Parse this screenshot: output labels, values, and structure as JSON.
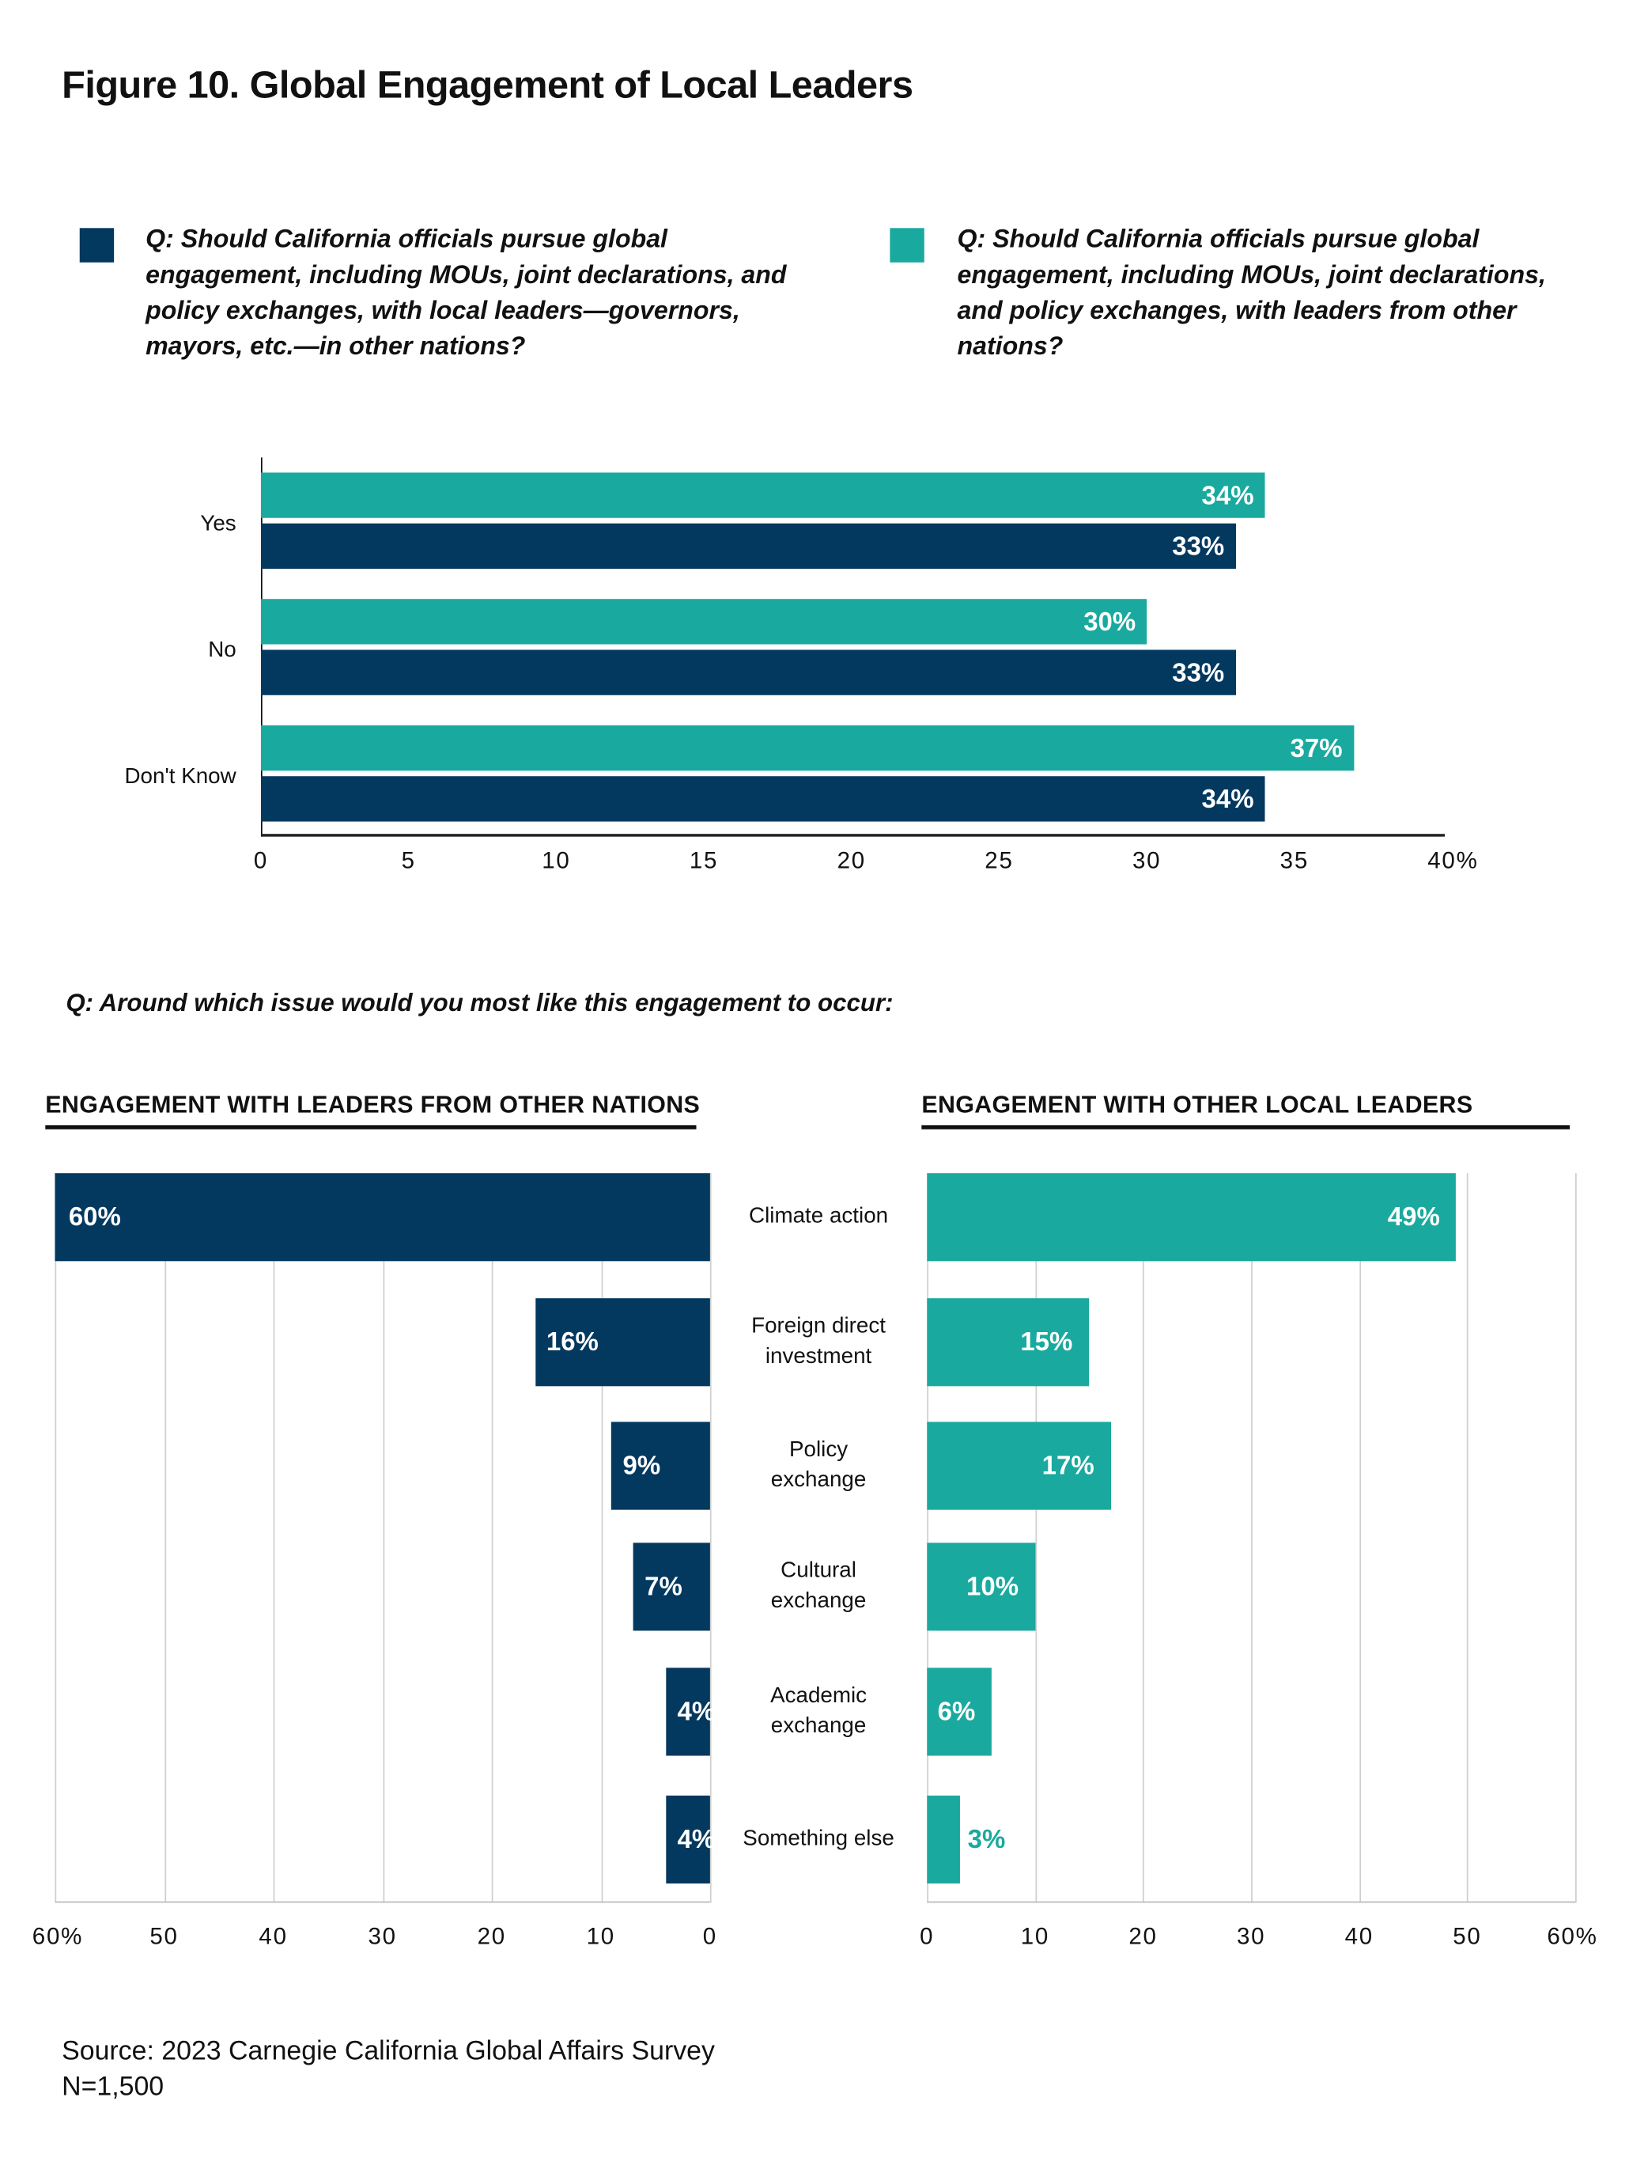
{
  "title": "Figure 10. Global Engagement of Local Leaders",
  "colors": {
    "navy": "#03385f",
    "teal": "#1aa99e"
  },
  "legend": [
    {
      "color": "#03385f",
      "text": "Q: Should California officials pursue global engagement, including MOUs, joint declarations, and policy exchanges, with local leaders—governors, mayors, etc.—in other nations?"
    },
    {
      "color": "#1aa99e",
      "text": "Q: Should California officials pursue global engagement, including MOUs, joint declarations, and policy exchanges, with leaders from other nations?"
    }
  ],
  "question2": "Q: Around which issue would you most like this engagement to occur:",
  "left_header": "ENGAGEMENT WITH LEADERS FROM OTHER NATIONS",
  "right_header": "ENGAGEMENT WITH OTHER LOCAL LEADERS",
  "source": "Source: 2023 Carnegie California Global Affairs Survey",
  "n": "N=1,500",
  "chart_data": [
    {
      "type": "bar",
      "orientation": "horizontal",
      "categories": [
        "Yes",
        "No",
        "Don't Know"
      ],
      "series": [
        {
          "color": "#1aa99e",
          "values": [
            34,
            30,
            37
          ],
          "labels": [
            "34%",
            "30%",
            "37%"
          ]
        },
        {
          "color": "#03385f",
          "values": [
            33,
            33,
            34
          ],
          "labels": [
            "33%",
            "33%",
            "34%"
          ]
        }
      ],
      "xlim": [
        0,
        40
      ],
      "xticks": [
        "0",
        "5",
        "10",
        "15",
        "20",
        "25",
        "30",
        "35",
        "40%"
      ],
      "grid": false
    },
    {
      "type": "bar",
      "orientation": "horizontal",
      "title": "ENGAGEMENT WITH LEADERS FROM OTHER NATIONS",
      "direction": "right-to-left",
      "categories": [
        "Climate action",
        "Foreign direct investment",
        "Policy exchange",
        "Cultural exchange",
        "Academic exchange",
        "Something else"
      ],
      "values": [
        60,
        16,
        9,
        7,
        4,
        4
      ],
      "labels": [
        "60%",
        "16%",
        "9%",
        "7%",
        "4%",
        "4%"
      ],
      "color": "#03385f",
      "xlim": [
        0,
        60
      ],
      "xticks": [
        "60%",
        "50",
        "40",
        "30",
        "20",
        "10",
        "0"
      ],
      "grid": true
    },
    {
      "type": "bar",
      "orientation": "horizontal",
      "title": "ENGAGEMENT WITH OTHER LOCAL LEADERS",
      "categories": [
        "Climate action",
        "Foreign direct investment",
        "Policy exchange",
        "Cultural exchange",
        "Academic exchange",
        "Something else"
      ],
      "values": [
        49,
        15,
        17,
        10,
        6,
        3
      ],
      "labels": [
        "49%",
        "15%",
        "17%",
        "10%",
        "6%",
        "3%"
      ],
      "color": "#1aa99e",
      "xlim": [
        0,
        60
      ],
      "xticks": [
        "0",
        "10",
        "20",
        "30",
        "40",
        "50",
        "60%"
      ],
      "grid": true
    }
  ],
  "category_labels": [
    [
      "Climate action"
    ],
    [
      "Foreign direct",
      "investment"
    ],
    [
      "Policy",
      "exchange"
    ],
    [
      "Cultural",
      "exchange"
    ],
    [
      "Academic",
      "exchange"
    ],
    [
      "Something else"
    ]
  ]
}
